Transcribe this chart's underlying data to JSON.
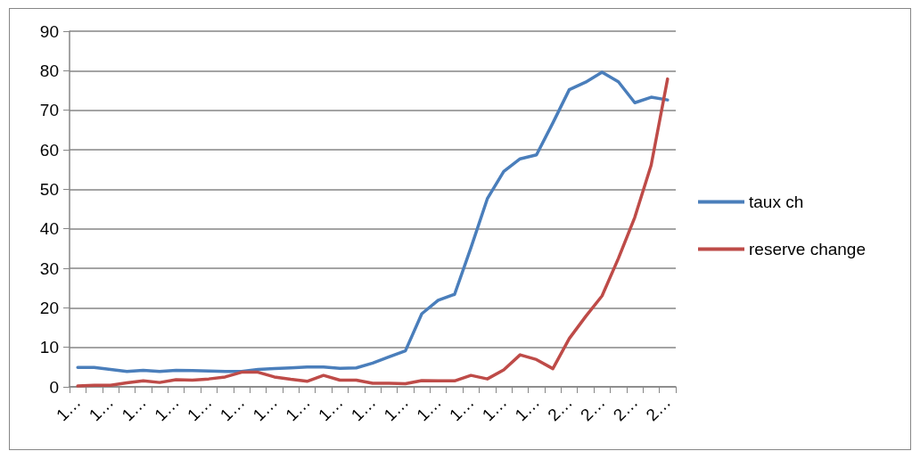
{
  "chart_data": {
    "type": "line",
    "categories": [
      "1…",
      null,
      "1…",
      null,
      "1…",
      null,
      "1…",
      null,
      "1…",
      null,
      "1…",
      null,
      "1…",
      null,
      "1…",
      null,
      "1…",
      null,
      "1…",
      null,
      "1…",
      null,
      "1…",
      null,
      "1…",
      null,
      "1…",
      null,
      "1…",
      null,
      "2…",
      null,
      "2…",
      null,
      "2…",
      null,
      "2…"
    ],
    "series": [
      {
        "name": "taux ch",
        "color": "#4a7ebb",
        "values": [
          4.9,
          4.9,
          4.4,
          3.9,
          4.2,
          3.9,
          4.2,
          4.1,
          4.0,
          3.9,
          3.9,
          4.4,
          4.6,
          4.8,
          5.0,
          5.0,
          4.7,
          4.8,
          6.0,
          7.6,
          9.1,
          18.5,
          21.9,
          23.4,
          35.2,
          47.6,
          54.5,
          57.7,
          58.7,
          66.8,
          75.2,
          77.1,
          79.6,
          77.2,
          71.9,
          73.3,
          72.6
        ]
      },
      {
        "name": "reserve change",
        "color": "#be4b48",
        "values": [
          0.2,
          0.4,
          0.4,
          1.0,
          1.5,
          1.1,
          1.8,
          1.7,
          2.0,
          2.5,
          3.7,
          3.7,
          2.5,
          1.9,
          1.4,
          2.9,
          1.7,
          1.7,
          0.9,
          0.9,
          0.8,
          1.6,
          1.5,
          1.5,
          2.9,
          2.0,
          4.3,
          8.1,
          6.9,
          4.6,
          12.2,
          17.8,
          23.0,
          32.5,
          42.9,
          56.1,
          77.9
        ]
      }
    ],
    "ylim": [
      0,
      90
    ],
    "yticks": [
      0,
      10,
      20,
      30,
      40,
      50,
      60,
      70,
      80,
      90
    ],
    "grid": "y",
    "legend": "right",
    "marker": "none",
    "line_style": "solid"
  }
}
